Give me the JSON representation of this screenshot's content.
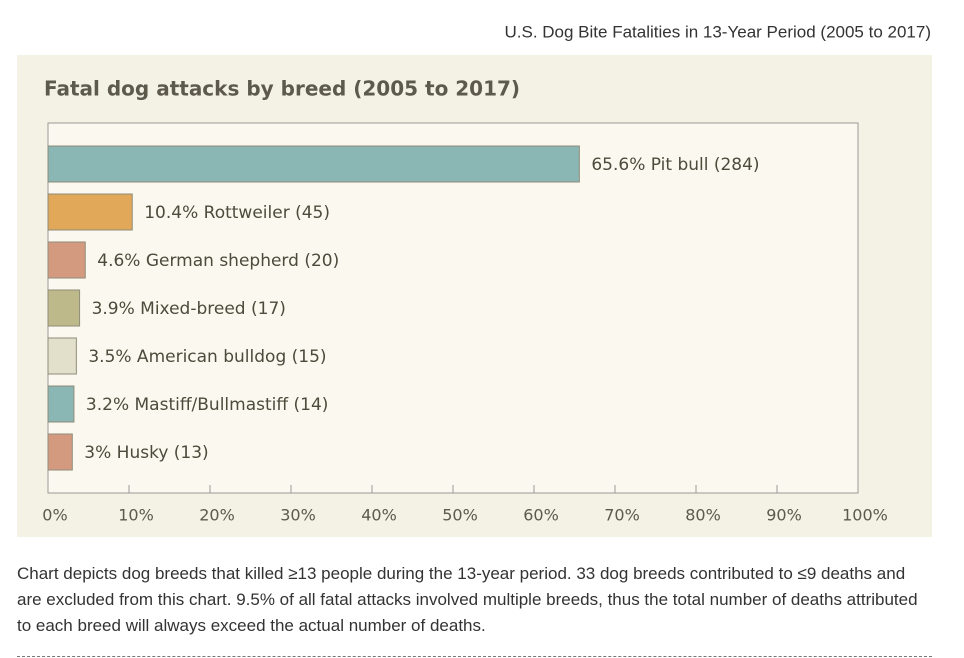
{
  "header": "U.S. Dog Bite Fatalities in 13-Year Period (2005 to 2017)",
  "chart_data": {
    "type": "hbar",
    "title": "Fatal dog attacks by breed (2005 to 2017)",
    "values": [
      65.6,
      10.4,
      4.6,
      3.9,
      3.5,
      3.2,
      3
    ],
    "value_labels": [
      "65.6% Pit bull (284)",
      "10.4% Rottweiler (45)",
      "4.6% German shepherd (20)",
      "3.9% Mixed-breed (17)",
      "3.5% American bulldog (15)",
      "3.2% Mastiff/Bullmastiff (14)",
      "3% Husky (13)"
    ],
    "colors": [
      "#8ab6b3",
      "#e2a85a",
      "#d49a80",
      "#bdb98b",
      "#e2e0cb",
      "#8ab6b3",
      "#d49a80"
    ],
    "xlim": [
      0,
      100
    ],
    "xticks": [
      {
        "value": 0,
        "label": "0%"
      },
      {
        "value": 10,
        "label": "10%"
      },
      {
        "value": 20,
        "label": "20%"
      },
      {
        "value": 30,
        "label": "30%"
      },
      {
        "value": 40,
        "label": "40%"
      },
      {
        "value": 50,
        "label": "50%"
      },
      {
        "value": 60,
        "label": "60%"
      },
      {
        "value": 70,
        "label": "70%"
      },
      {
        "value": 80,
        "label": "80%"
      },
      {
        "value": 90,
        "label": "90%"
      },
      {
        "value": 100,
        "label": "100%"
      }
    ]
  },
  "caption": "Chart depicts dog breeds that killed ≥13 people during the 13-year period. 33 dog breeds contributed to ≤9 deaths and are excluded from this chart. 9.5% of all fatal attacks involved multiple breeds, thus the total number of deaths attributed to each breed will always exceed the actual number of deaths."
}
